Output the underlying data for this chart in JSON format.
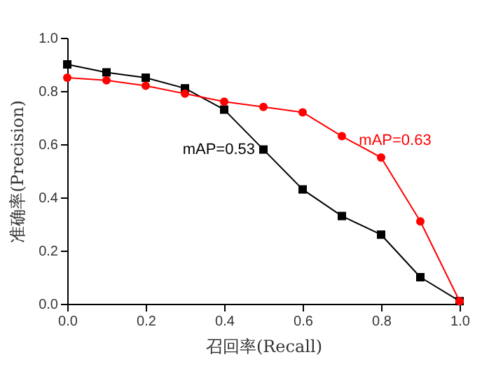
{
  "chart_data": {
    "type": "line",
    "xlabel": "召回率(Recall)",
    "ylabel": "准确率(Precision)",
    "x": [
      0,
      0.1,
      0.2,
      0.3,
      0.4,
      0.5,
      0.6,
      0.7,
      0.8,
      0.9,
      1.0
    ],
    "series": [
      {
        "color": "#000000",
        "marker": "square",
        "values": [
          0.9,
          0.87,
          0.85,
          0.81,
          0.73,
          0.58,
          0.43,
          0.33,
          0.26,
          0.1,
          0.01
        ]
      },
      {
        "color": "#ff0000",
        "marker": "circle",
        "values": [
          0.85,
          0.84,
          0.82,
          0.79,
          0.76,
          0.74,
          0.72,
          0.63,
          0.55,
          0.31,
          0.01
        ]
      }
    ],
    "xlim": [
      0,
      1.0
    ],
    "xticks": [
      {
        "value": 0,
        "label": "0.0"
      },
      0.2,
      0.4,
      0.6,
      0.8,
      {
        "value": 1,
        "label": "1.0"
      }
    ],
    "ylim": [
      0,
      1.0
    ],
    "yticks": [
      {
        "value": 0,
        "label": "0.0"
      },
      0.2,
      0.4,
      0.6,
      0.8,
      {
        "value": 1,
        "label": "1.0"
      }
    ],
    "annotations": [
      {
        "text": "mAP=0.53",
        "x": 0.5,
        "y": 0.58
      },
      {
        "text": "mAP=0.63",
        "x": 0.8,
        "y": 0.55
      }
    ],
    "grid": false
  }
}
